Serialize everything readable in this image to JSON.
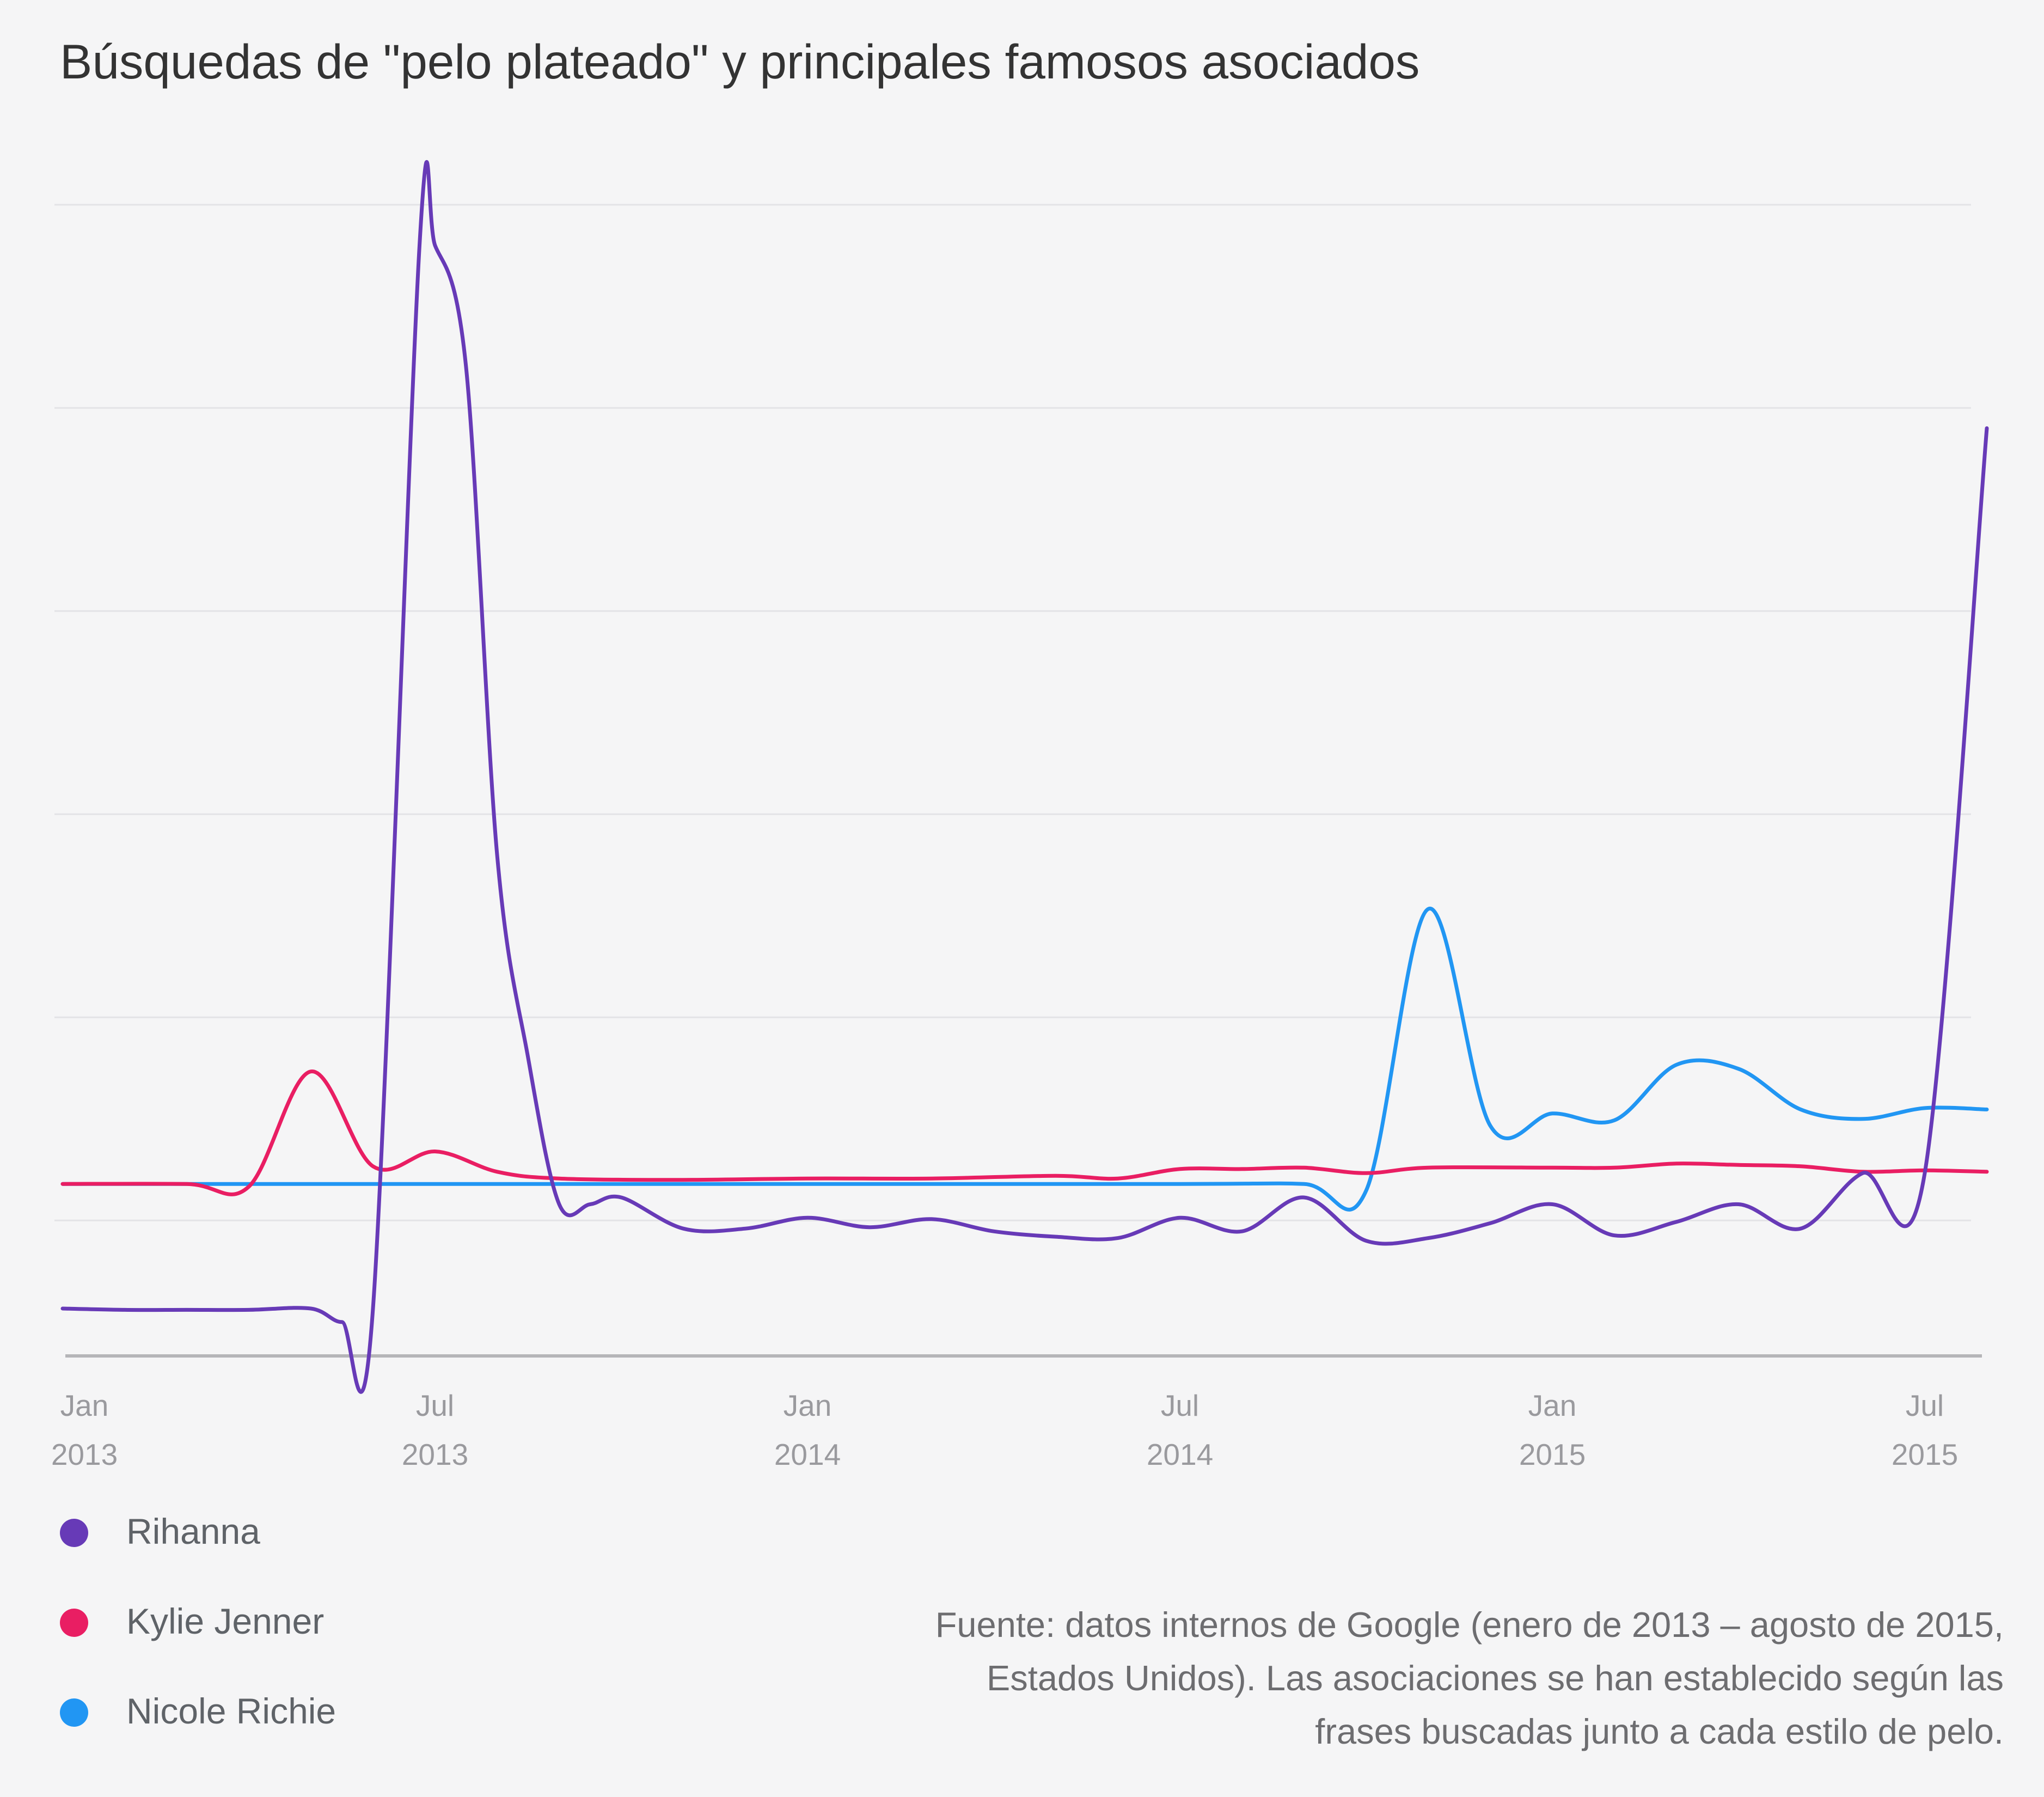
{
  "title": "Búsquedas de \"pelo plateado\" y principales famosos asociados",
  "source_lines": [
    "Fuente: datos internos de Google (enero de 2013 – agosto de 2015,",
    "Estados Unidos). Las asociaciones se han establecido según las",
    "frases buscadas junto a cada estilo de pelo."
  ],
  "chart_data": {
    "type": "line",
    "title": "Búsquedas de \"pelo plateado\" y principales famosos asociados",
    "xlabel": "",
    "ylabel": "",
    "x_axis": {
      "ticks": [
        {
          "month": 0,
          "line1": "Jan",
          "line2": "2013"
        },
        {
          "month": 6,
          "line1": "Jul",
          "line2": "2013"
        },
        {
          "month": 12,
          "line1": "Jan",
          "line2": "2014"
        },
        {
          "month": 18,
          "line1": "Jul",
          "line2": "2014"
        },
        {
          "month": 24,
          "line1": "Jan",
          "line2": "2015"
        },
        {
          "month": 30,
          "line1": "Jul",
          "line2": "2015"
        }
      ],
      "range": [
        "2013-01",
        "2015-08"
      ]
    },
    "ylim": [
      0,
      100
    ],
    "y_gridlines": [
      10,
      25,
      40,
      55,
      70,
      85
    ],
    "y_tick_labels_shown": false,
    "legend_position": "bottom-left",
    "series": [
      {
        "name": "Rihanna",
        "color": "#673ab7",
        "points": [
          [
            0,
            3.5
          ],
          [
            1,
            3.4
          ],
          [
            2,
            3.4
          ],
          [
            3,
            3.4
          ],
          [
            4,
            3.5
          ],
          [
            4.5,
            2.5
          ],
          [
            5,
            3.5
          ],
          [
            5.75,
            82
          ],
          [
            6,
            82
          ],
          [
            6.5,
            73
          ],
          [
            7,
            37
          ],
          [
            7.5,
            22
          ],
          [
            8,
            11.2
          ],
          [
            8.5,
            11.2
          ],
          [
            9,
            11.7
          ],
          [
            10,
            9.4
          ],
          [
            11,
            9.4
          ],
          [
            12,
            10.2
          ],
          [
            13,
            9.5
          ],
          [
            14,
            10.1
          ],
          [
            15,
            9.2
          ],
          [
            16,
            8.8
          ],
          [
            17,
            8.7
          ],
          [
            18,
            10.2
          ],
          [
            19,
            9.2
          ],
          [
            20,
            11.7
          ],
          [
            21,
            8.5
          ],
          [
            22,
            8.7
          ],
          [
            23,
            9.8
          ],
          [
            24,
            11.2
          ],
          [
            25,
            8.9
          ],
          [
            26,
            9.9
          ],
          [
            27,
            11.2
          ],
          [
            28,
            9.4
          ],
          [
            29,
            13.5
          ],
          [
            30,
            13.5
          ],
          [
            31,
            68.5
          ]
        ]
      },
      {
        "name": "Kylie Jenner",
        "color": "#e91e63",
        "points": [
          [
            0,
            12.7
          ],
          [
            2,
            12.7
          ],
          [
            3,
            12.5
          ],
          [
            4,
            21
          ],
          [
            5,
            14
          ],
          [
            6,
            15.1
          ],
          [
            7,
            13.6
          ],
          [
            8,
            13.1
          ],
          [
            10,
            13
          ],
          [
            12,
            13.1
          ],
          [
            14,
            13.1
          ],
          [
            16,
            13.3
          ],
          [
            17,
            13.1
          ],
          [
            18,
            13.8
          ],
          [
            19,
            13.8
          ],
          [
            20,
            13.9
          ],
          [
            21,
            13.5
          ],
          [
            22,
            13.9
          ],
          [
            24,
            13.9
          ],
          [
            25,
            13.9
          ],
          [
            26,
            14.2
          ],
          [
            27,
            14.1
          ],
          [
            28,
            14
          ],
          [
            29,
            13.6
          ],
          [
            30,
            13.7
          ],
          [
            31,
            13.6
          ]
        ]
      },
      {
        "name": "Nicole Richie",
        "color": "#2196f3",
        "points": [
          [
            0,
            12.7
          ],
          [
            2,
            12.7
          ],
          [
            6,
            12.7
          ],
          [
            12,
            12.7
          ],
          [
            18,
            12.7
          ],
          [
            20,
            12.7
          ],
          [
            21,
            12.2
          ],
          [
            22,
            33
          ],
          [
            23,
            17
          ],
          [
            24,
            17.9
          ],
          [
            25,
            17.4
          ],
          [
            26,
            21.5
          ],
          [
            27,
            21.2
          ],
          [
            28,
            18.2
          ],
          [
            29,
            17.5
          ],
          [
            30,
            18.3
          ],
          [
            31,
            18.2
          ]
        ]
      }
    ]
  }
}
